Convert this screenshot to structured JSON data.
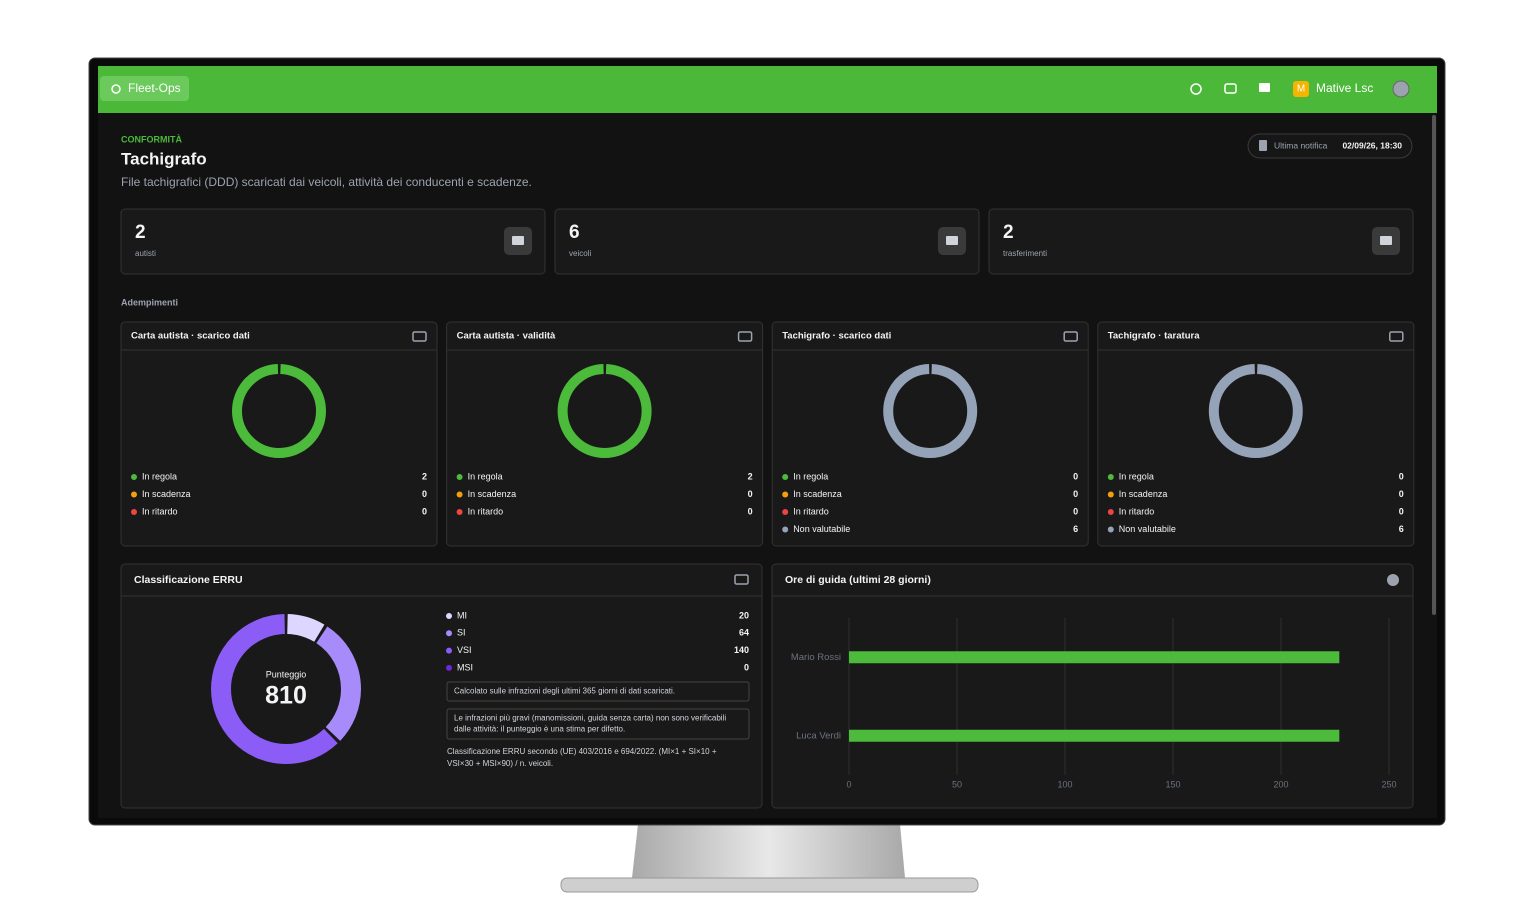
{
  "header": {
    "brand": "Fleet-Ops",
    "user_initial": "M",
    "user_name": "Mative Lsc"
  },
  "page": {
    "section": "CONFORMITÀ",
    "title": "Tachigrafo",
    "subtitle": "File tachigrafici (DDD) scaricati dai veicoli, attività dei conducenti e scadenze.",
    "notification_label": "Ultima notifica",
    "notification_date": "02/09/26, 18:30",
    "compliance_heading": "Adempimenti"
  },
  "kpis": [
    {
      "value": 2,
      "label": "autisti"
    },
    {
      "value": 6,
      "label": "veicoli"
    },
    {
      "value": 2,
      "label": "trasferimenti"
    }
  ],
  "chart_data": [
    {
      "type": "donut",
      "title": "Carta autista · scarico dati",
      "categories": [
        "In regola",
        "In scadenza",
        "In ritardo"
      ],
      "values": [
        2,
        0,
        0
      ],
      "colors": [
        "#4cba3a",
        "#f59e0b",
        "#ef4444"
      ]
    },
    {
      "type": "donut",
      "title": "Carta autista · validità",
      "categories": [
        "In regola",
        "In scadenza",
        "In ritardo"
      ],
      "values": [
        2,
        0,
        0
      ],
      "colors": [
        "#4cba3a",
        "#f59e0b",
        "#ef4444"
      ]
    },
    {
      "type": "donut",
      "title": "Tachigrafo · scarico dati",
      "categories": [
        "In regola",
        "In scadenza",
        "In ritardo",
        "Non valutabile"
      ],
      "values": [
        0,
        0,
        0,
        6
      ],
      "colors": [
        "#4cba3a",
        "#f59e0b",
        "#ef4444",
        "#94a3b8"
      ]
    },
    {
      "type": "donut",
      "title": "Tachigrafo · taratura",
      "categories": [
        "In regola",
        "In scadenza",
        "In ritardo",
        "Non valutabile"
      ],
      "values": [
        0,
        0,
        0,
        6
      ],
      "colors": [
        "#4cba3a",
        "#f59e0b",
        "#ef4444",
        "#94a3b8"
      ]
    },
    {
      "type": "donut",
      "title": "Classificazione ERRU",
      "categories": [
        "MI",
        "SI",
        "VSI",
        "MSI"
      ],
      "values": [
        20,
        64,
        140,
        0
      ],
      "colors": [
        "#ddd6fe",
        "#a78bfa",
        "#8b5cf6",
        "#6d28d9"
      ],
      "center_label": "Punteggio",
      "center_value": 810,
      "notes": [
        [
          "Calcolato sulle infrazioni degli ultimi 365 giorni di dati scaricati."
        ],
        [
          "Le infrazioni più gravi (manomissioni, guida senza carta) non sono verificabili",
          "dalle attività: il punteggio è una stima per difetto."
        ]
      ],
      "footer": [
        "Classificazione ERRU secondo (UE) 403/2016 e 694/2022. (MI×1 + SI×10 +",
        "VSI×30 + MSI×90) / n. veicoli."
      ]
    },
    {
      "type": "bar",
      "orientation": "horizontal",
      "title": "Ore di guida (ultimi 28 giorni)",
      "categories": [
        "Mario Rossi",
        "Luca Verdi"
      ],
      "values": [
        227,
        227
      ],
      "color": "#4cba3a",
      "xlim": [
        0,
        250
      ],
      "xticks": [
        0,
        50,
        100,
        150,
        200,
        250
      ],
      "grid": true
    }
  ]
}
